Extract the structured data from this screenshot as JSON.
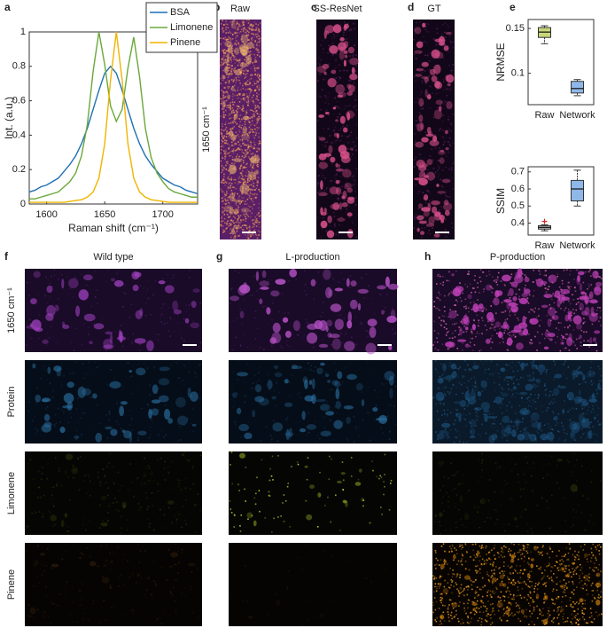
{
  "panel_labels": [
    "a",
    "b",
    "c",
    "d",
    "e",
    "f",
    "g",
    "h"
  ],
  "chart_data": [
    {
      "type": "line",
      "xlabel": "Raman shift (cm⁻¹)",
      "ylabel": "Int. (a.u.)",
      "x": [
        1585,
        1590,
        1595,
        1600,
        1605,
        1610,
        1615,
        1620,
        1625,
        1630,
        1635,
        1640,
        1645,
        1650,
        1655,
        1660,
        1665,
        1670,
        1675,
        1680,
        1685,
        1690,
        1695,
        1700,
        1705,
        1710,
        1715,
        1720,
        1725,
        1730
      ],
      "series": [
        {
          "name": "BSA",
          "color": "#1f6fb4",
          "values": [
            0.07,
            0.08,
            0.1,
            0.11,
            0.13,
            0.15,
            0.19,
            0.23,
            0.28,
            0.35,
            0.44,
            0.55,
            0.66,
            0.76,
            0.8,
            0.76,
            0.66,
            0.55,
            0.44,
            0.35,
            0.28,
            0.23,
            0.19,
            0.15,
            0.13,
            0.11,
            0.1,
            0.08,
            0.07,
            0.06
          ]
        },
        {
          "name": "Limonene",
          "color": "#6aa83a",
          "values": [
            0.03,
            0.03,
            0.04,
            0.05,
            0.06,
            0.07,
            0.1,
            0.13,
            0.18,
            0.28,
            0.46,
            0.77,
            1.0,
            0.81,
            0.57,
            0.48,
            0.55,
            0.79,
            0.97,
            0.74,
            0.44,
            0.27,
            0.18,
            0.13,
            0.09,
            0.07,
            0.06,
            0.05,
            0.04,
            0.04
          ]
        },
        {
          "name": "Pinene",
          "color": "#f0b400",
          "values": [
            0.01,
            0.01,
            0.01,
            0.01,
            0.01,
            0.01,
            0.01,
            0.015,
            0.02,
            0.025,
            0.04,
            0.07,
            0.15,
            0.35,
            0.72,
            1.0,
            0.72,
            0.35,
            0.15,
            0.07,
            0.04,
            0.025,
            0.02,
            0.015,
            0.01,
            0.01,
            0.01,
            0.01,
            0.01,
            0.01
          ]
        }
      ],
      "xlim": [
        1585,
        1730
      ],
      "xticks": [
        1600,
        1650,
        1700
      ],
      "ylim": [
        0,
        1
      ],
      "yticks": [
        0,
        0.2,
        0.4,
        0.6,
        0.8,
        1
      ],
      "legend": "upper right"
    },
    {
      "type": "box",
      "ylabel": "NRMSE",
      "categories": [
        "Raw",
        "Network"
      ],
      "boxes": [
        {
          "min": 0.133,
          "q1": 0.14,
          "median": 0.146,
          "q3": 0.151,
          "max": 0.153,
          "color": "#c9d67a"
        },
        {
          "min": 0.075,
          "q1": 0.078,
          "median": 0.083,
          "q3": 0.091,
          "max": 0.093,
          "color": "#8fb8e8"
        }
      ],
      "ylim": [
        0.065,
        0.16
      ],
      "yticks": [
        0.1,
        0.15
      ]
    },
    {
      "type": "box",
      "ylabel": "SSIM",
      "categories": [
        "Raw",
        "Network"
      ],
      "boxes": [
        {
          "min": 0.355,
          "q1": 0.365,
          "median": 0.375,
          "q3": 0.385,
          "max": 0.39,
          "color": "#b8b8b8",
          "outliers": [
            0.41
          ]
        },
        {
          "min": 0.5,
          "q1": 0.53,
          "median": 0.6,
          "q3": 0.65,
          "max": 0.71,
          "color": "#8fb8e8"
        }
      ],
      "ylim": [
        0.33,
        0.73
      ],
      "yticks": [
        0.4,
        0.5,
        0.6,
        0.7
      ]
    }
  ],
  "images": {
    "row_label": "1650 cm⁻¹",
    "titles": [
      "Raw",
      "SS-ResNet",
      "GT"
    ]
  },
  "grid": {
    "columns": [
      "Wild type",
      "L-production",
      "P-production"
    ],
    "rows": [
      "1650 cm⁻¹",
      "Protein",
      "Limonene",
      "Pinene"
    ]
  }
}
